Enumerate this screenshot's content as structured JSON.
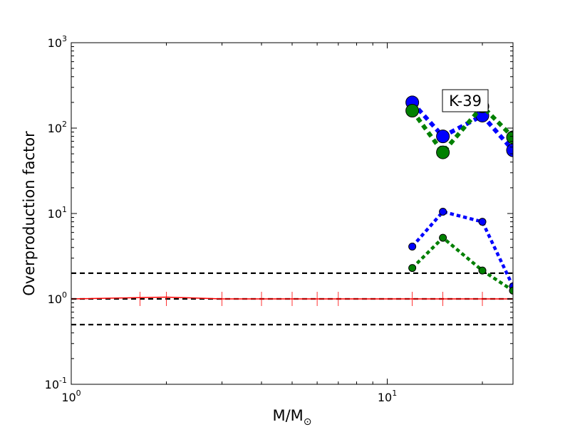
{
  "chart_data": {
    "type": "line",
    "title": "",
    "annotation": "K-39",
    "xlabel": "M/M",
    "xlabel_subscript": "⊙",
    "ylabel": "Overproduction factor",
    "xscale": "log",
    "yscale": "log",
    "xlim": [
      1,
      25
    ],
    "ylim": [
      0.1,
      1000
    ],
    "grid": false,
    "x_ticks": [
      {
        "value": 1,
        "base": "10",
        "exp": "0"
      },
      {
        "value": 10,
        "base": "10",
        "exp": "1"
      }
    ],
    "y_ticks": [
      {
        "value": 0.1,
        "base": "10",
        "exp": "-1"
      },
      {
        "value": 1,
        "base": "10",
        "exp": "0"
      },
      {
        "value": 10,
        "base": "10",
        "exp": "1"
      },
      {
        "value": 100,
        "base": "10",
        "exp": "2"
      },
      {
        "value": 1000,
        "base": "10",
        "exp": "3"
      }
    ],
    "reference_lines": [
      0.5,
      1,
      2
    ],
    "series": [
      {
        "color": "#ff0000",
        "style": "solid",
        "width": 1.5,
        "x": [
          1,
          2,
          3,
          25
        ],
        "y": [
          1.0,
          1.05,
          1.0,
          1.0
        ],
        "error_marks_x": [
          1.65,
          2,
          3,
          4,
          5,
          6,
          7,
          12,
          15,
          20,
          25
        ]
      },
      {
        "color": "#0000ff",
        "style": "dotted",
        "width": 6,
        "marker_r": 9,
        "x": [
          12,
          15,
          20,
          25
        ],
        "y": [
          200,
          80,
          140,
          55
        ]
      },
      {
        "color": "#008000",
        "style": "dotted",
        "width": 6,
        "marker_r": 9,
        "x": [
          12,
          15,
          20,
          25
        ],
        "y": [
          160,
          52,
          180,
          78
        ]
      },
      {
        "color": "#0000ff",
        "style": "dotted",
        "width": 4.5,
        "marker_r": 5,
        "x": [
          12,
          15,
          20,
          25
        ],
        "y": [
          4.1,
          10.5,
          8.0,
          1.4
        ]
      },
      {
        "color": "#008000",
        "style": "dotted",
        "width": 4.5,
        "marker_r": 5,
        "x": [
          12,
          15,
          20,
          25
        ],
        "y": [
          2.3,
          5.2,
          2.15,
          1.25
        ]
      }
    ]
  }
}
